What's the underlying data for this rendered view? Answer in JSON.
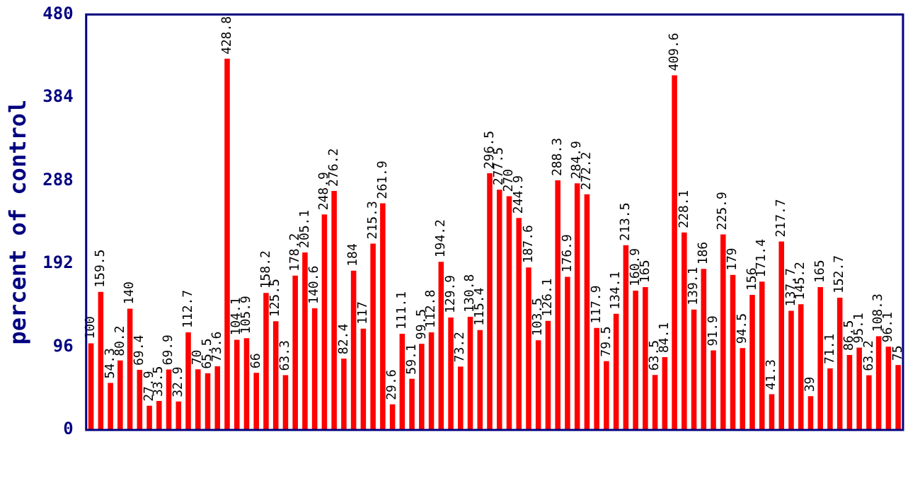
{
  "chart_data": {
    "type": "bar",
    "ylabel": "percent of control",
    "categories": [
      null,
      null,
      null,
      null,
      null,
      null,
      null,
      null,
      null,
      null,
      null,
      null,
      null,
      null,
      null,
      null,
      null,
      null,
      null,
      null,
      null,
      null,
      null,
      null,
      null,
      null,
      null,
      null,
      null,
      null,
      null,
      null,
      null,
      null,
      null,
      null,
      null,
      null,
      null,
      null,
      null,
      null,
      null,
      null,
      null,
      null,
      null,
      null,
      null,
      null,
      null,
      null,
      null,
      null,
      null,
      null,
      null,
      null,
      null,
      null,
      null,
      null,
      null,
      null,
      null,
      null,
      null,
      null,
      null,
      null,
      null,
      null,
      null,
      null,
      null,
      null,
      null,
      null,
      null,
      null,
      null,
      null,
      null,
      null
    ],
    "values": [
      100,
      159.5,
      54.3,
      80.2,
      140,
      69.4,
      27.9,
      33.5,
      69.9,
      32.9,
      112.7,
      70,
      65.5,
      73.6,
      428.8,
      104.1,
      105.9,
      66,
      158.2,
      125.5,
      63.3,
      178.2,
      205.1,
      140.6,
      248.9,
      276.2,
      82.4,
      184,
      117,
      215.3,
      261.9,
      29.6,
      111.1,
      59.1,
      99.5,
      112.8,
      194.2,
      129.9,
      73.2,
      130.8,
      115.4,
      296.5,
      277.5,
      270,
      244.9,
      187.6,
      103.5,
      126.1,
      288.3,
      176.9,
      284.9,
      272.2,
      117.9,
      79.5,
      134.1,
      213.5,
      160.9,
      165,
      63.5,
      84.1,
      409.6,
      228.1,
      139.1,
      186,
      91.9,
      225.9,
      179,
      94.5,
      156,
      171.4,
      41.3,
      217.7,
      137.7,
      145.2,
      39,
      165,
      71.1,
      152.7,
      86.5,
      95.1,
      63.2,
      108.3,
      96.1,
      75
    ],
    "color": "#ff0000",
    "ylim": [
      0,
      480
    ],
    "yticks": [
      0,
      96,
      192,
      288,
      384,
      480
    ],
    "grid": false,
    "legend": false,
    "data_labels": true,
    "tick_labels": "y"
  }
}
